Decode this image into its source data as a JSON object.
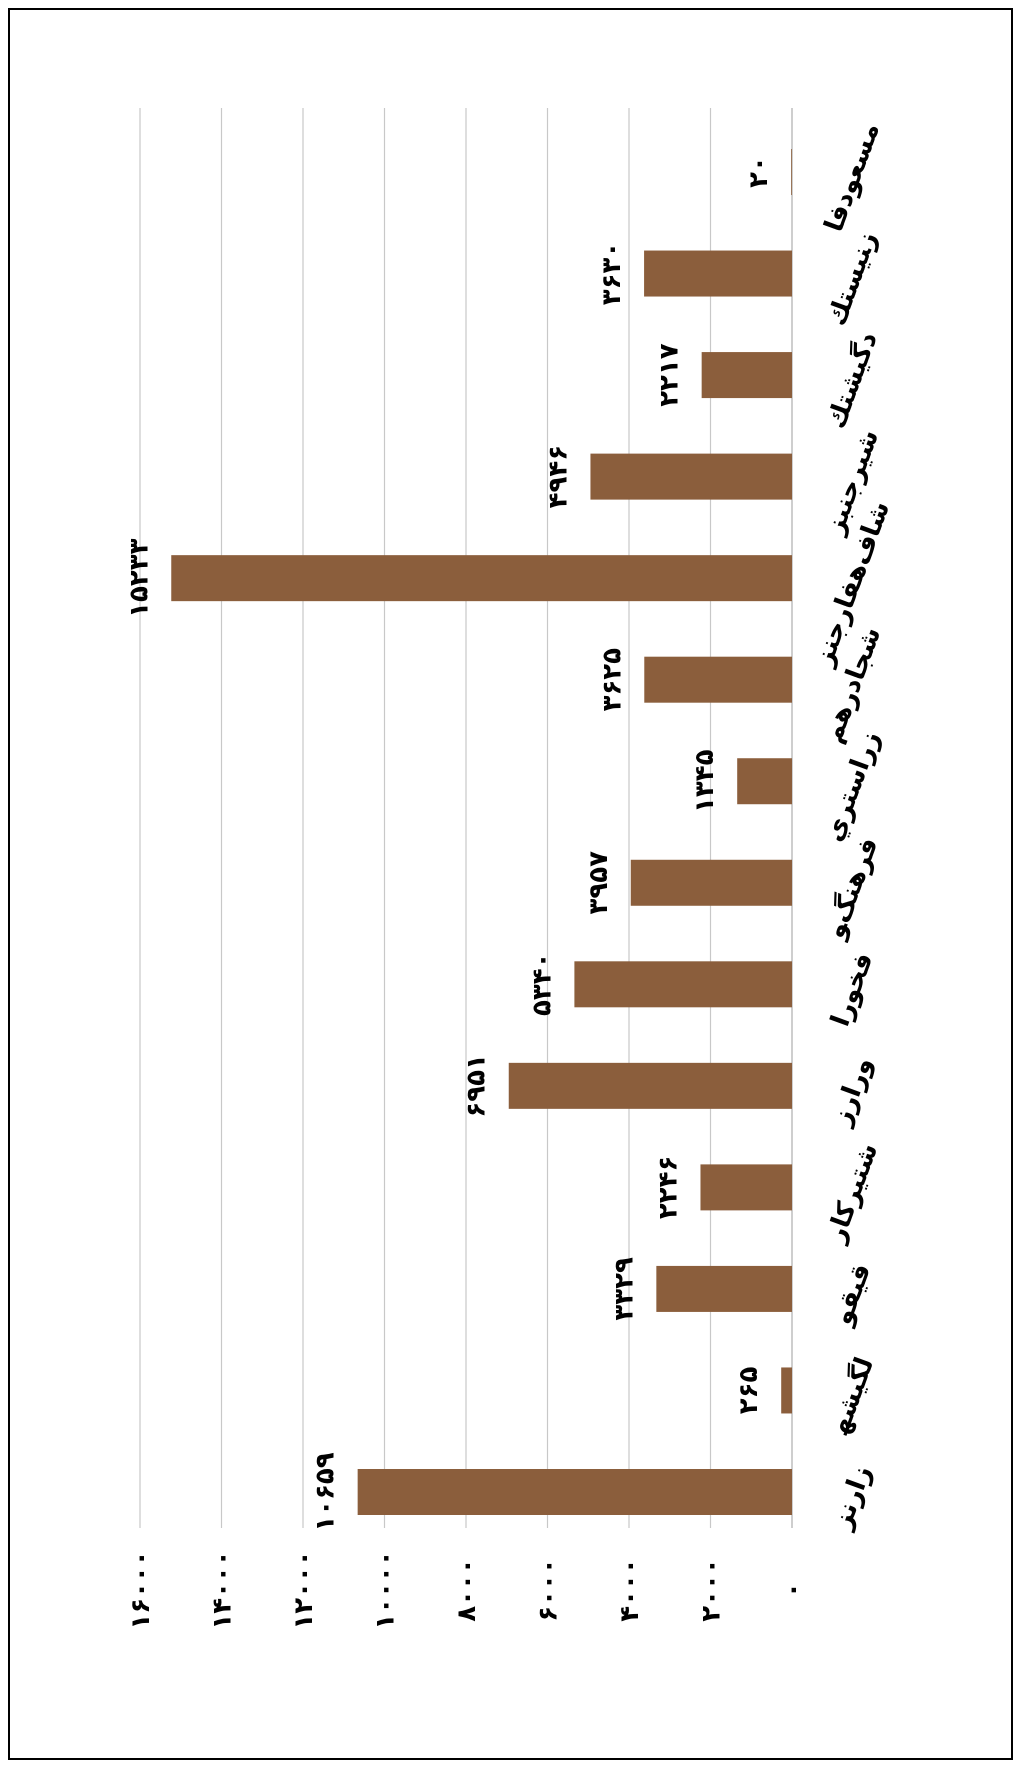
{
  "chart_data": {
    "type": "bar",
    "orientation": "rotated",
    "categories": [
      "ﻣﺴﻌﻮﺩﻓﺎ",
      "ﺯﻨﻴﺴﺘﻚ",
      "ﺩﮔﻴﺸﺘﻚ",
      "ﺷﻴﺮﺟﻨﺒﺰ",
      "ﺷﺎﻑﻫﻔﺎﺭﺟﻨﺰ",
      "ﺷﺠﺎﺩﺭﻫﻢ",
      "ﺯﺭﺍﺳﺘﺮﻱ",
      "ﻓﺮﻫﻨﮓﻮ",
      "ﻓﺨﻮﺭﺍ",
      "ﻭﺭﺍﺭﺯ",
      "ﺷﺘﻴﺮﻛﺎﺭ",
      "ﻗﻴﻘﻮ",
      "ﻟﮕﻴﺸﻬ",
      "ﺯﺍﺭﻧﺰ"
    ],
    "values": [
      20,
      3630,
      2217,
      4946,
      15233,
      3625,
      1345,
      3957,
      5340,
      6951,
      2246,
      3329,
      265,
      10659
    ],
    "value_labels": [
      "۲۰",
      "۳۶۳۰",
      "۲۲۱۷",
      "۴۹۴۶",
      "۱۵۲۳۳",
      "۳۶۲۵",
      "۱۳۴۵",
      "۳۹۵۷",
      "۵۳۴۰",
      "۶۹۵۱",
      "۲۲۴۶",
      "۳۳۲۹",
      "۲۶۵",
      "۱۰۶۵۹"
    ],
    "ticks": [
      0,
      2000,
      4000,
      6000,
      8000,
      10000,
      12000,
      14000,
      16000
    ],
    "tick_labels": [
      "۰",
      "۲۰۰۰",
      "۴۰۰۰",
      "۶۰۰۰",
      "۸۰۰۰",
      "۱۰۰۰۰",
      "۱۲۰۰۰",
      "۱۴۰۰۰",
      "۱۶۰۰۰"
    ],
    "ylim": [
      0,
      16000
    ],
    "grid": true,
    "bar_color": "#8B5E3C",
    "grid_color": "#c8c8c8",
    "title": "",
    "xlabel": "",
    "ylabel": ""
  }
}
